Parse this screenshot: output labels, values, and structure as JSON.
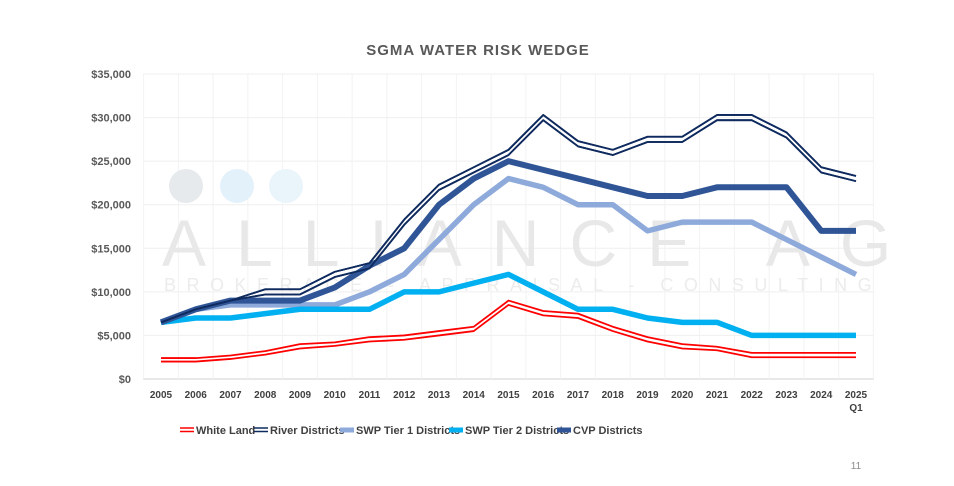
{
  "page_number": "11",
  "watermark": {
    "name": "ALLIANCE AG",
    "tagline": "BROKERAGE - APPRAISAL - CONSULTING"
  },
  "chart_data": {
    "type": "line",
    "title": "SGMA WATER RISK WEDGE",
    "xlabel": "",
    "ylabel": "",
    "ylim": [
      0,
      35000
    ],
    "yticks": [
      "$0",
      "$5,000",
      "$10,000",
      "$15,000",
      "$20,000",
      "$25,000",
      "$30,000",
      "$35,000"
    ],
    "categories": [
      "2005",
      "2006",
      "2007",
      "2008",
      "2009",
      "2010",
      "2011",
      "2012",
      "2013",
      "2014",
      "2015",
      "2016",
      "2017",
      "2018",
      "2019",
      "2020",
      "2021",
      "2022",
      "2023",
      "2024",
      "2025 Q1"
    ],
    "grid": true,
    "legend_position": "bottom",
    "series": [
      {
        "name": "White Land",
        "color": "#ff0000",
        "style": "range-double",
        "high": [
          2400,
          2400,
          2700,
          3200,
          4000,
          4200,
          4800,
          5000,
          5500,
          6000,
          9000,
          7800,
          7500,
          6000,
          4800,
          4000,
          3700,
          3000,
          3000,
          3000,
          3000
        ],
        "low": [
          2000,
          2000,
          2300,
          2800,
          3500,
          3800,
          4300,
          4500,
          5000,
          5500,
          8500,
          7300,
          7000,
          5500,
          4300,
          3500,
          3300,
          2500,
          2500,
          2500,
          2500
        ]
      },
      {
        "name": "River Districts",
        "color": "#0e2a5e",
        "style": "range-double",
        "high": [
          6500,
          8000,
          9000,
          10300,
          10300,
          12300,
          13300,
          18300,
          22300,
          24300,
          26300,
          30300,
          27300,
          26300,
          27800,
          27800,
          30300,
          30300,
          28300,
          24300,
          23300
        ],
        "low": [
          6500,
          8000,
          9000,
          9700,
          9700,
          11700,
          12700,
          17700,
          21700,
          23700,
          25700,
          29700,
          26700,
          25700,
          27200,
          27200,
          29700,
          29700,
          27700,
          23700,
          22700
        ]
      },
      {
        "name": "SWP Tier 1 Districts",
        "color": "#8eaadb",
        "style": "thick",
        "values": [
          6500,
          8000,
          8500,
          8500,
          8500,
          8500,
          10000,
          12000,
          16000,
          20000,
          23000,
          22000,
          20000,
          20000,
          17000,
          18000,
          18000,
          18000,
          16000,
          14000,
          12000
        ]
      },
      {
        "name": "SWP Tier 2 Districts",
        "color": "#00b0f0",
        "style": "thick",
        "values": [
          6500,
          7000,
          7000,
          7500,
          8000,
          8000,
          8000,
          10000,
          10000,
          11000,
          12000,
          10000,
          8000,
          8000,
          7000,
          6500,
          6500,
          5000,
          5000,
          5000,
          5000
        ]
      },
      {
        "name": "CVP Districts",
        "color": "#2f5597",
        "style": "thick",
        "values": [
          6500,
          8000,
          9000,
          9000,
          9000,
          10500,
          13000,
          15000,
          20000,
          23000,
          25000,
          24000,
          23000,
          22000,
          21000,
          21000,
          22000,
          22000,
          22000,
          17000,
          17000
        ]
      }
    ]
  }
}
